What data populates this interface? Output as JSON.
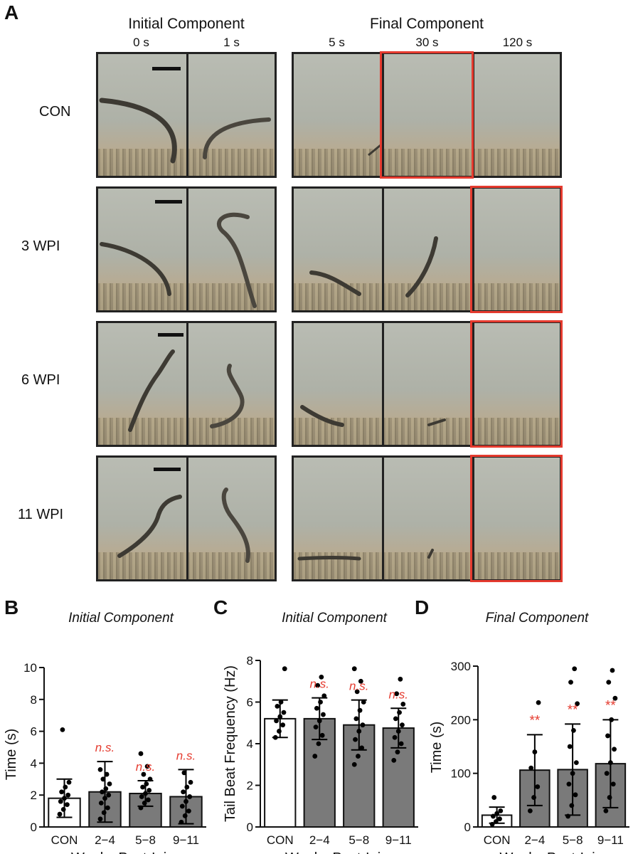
{
  "panel_a": {
    "letter": "A",
    "initial_header": "Initial Component",
    "final_header": "Final Component",
    "times_initial": [
      "0 s",
      "1 s"
    ],
    "times_final": [
      "5 s",
      "30 s",
      "120 s"
    ],
    "rows": [
      "CON",
      "3 WPI",
      "6 WPI",
      "11 WPI"
    ],
    "highlight_color": "#e53b2f"
  },
  "panel_b": {
    "letter": "B",
    "subtitle": "Initial Component",
    "ylabel": "Time (s)",
    "xlabel": "Weeks Post-Injury",
    "ticks": [
      "0",
      "2",
      "4",
      "6",
      "8",
      "10"
    ],
    "categories": [
      "CON",
      "2−4",
      "5−8",
      "9−11"
    ],
    "sig": [
      "",
      "n.s.",
      "n.s.",
      "n.s."
    ]
  },
  "panel_c": {
    "letter": "C",
    "subtitle": "Initial Component",
    "ylabel": "Tail Beat Frequency (Hz)",
    "xlabel": "Weeks Post-Injury",
    "ticks": [
      "0",
      "2",
      "4",
      "6",
      "8"
    ],
    "categories": [
      "CON",
      "2−4",
      "5−8",
      "9−11"
    ],
    "sig": [
      "",
      "n.s.",
      "n.s.",
      "n.s."
    ]
  },
  "panel_d": {
    "letter": "D",
    "subtitle": "Final Component",
    "ylabel": "Time (s)",
    "xlabel": "Weeks Post-Injury",
    "ticks": [
      "0",
      "100",
      "200",
      "300"
    ],
    "categories": [
      "CON",
      "2−4",
      "5−8",
      "9−11"
    ],
    "sig": [
      "",
      "**",
      "**",
      "**"
    ]
  },
  "chart_data": [
    {
      "type": "bar",
      "title": "Initial Component",
      "ylabel": "Time (s)",
      "xlabel": "Weeks Post-Injury",
      "categories": [
        "CON",
        "2−4",
        "5−8",
        "9−11"
      ],
      "values": [
        1.8,
        2.2,
        2.1,
        1.9
      ],
      "sd": [
        1.2,
        1.9,
        0.8,
        1.7
      ],
      "ylim": [
        0,
        10
      ],
      "fills": [
        "#ffffff",
        "#7a7a7a",
        "#7a7a7a",
        "#7a7a7a"
      ],
      "points": [
        [
          0.8,
          1.1,
          1.4,
          1.6,
          1.8,
          2.0,
          2.2,
          2.5,
          2.8,
          6.1
        ],
        [
          0.5,
          0.9,
          1.2,
          1.5,
          1.8,
          2.0,
          2.2,
          2.4,
          2.7,
          3.0,
          3.3,
          3.6
        ],
        [
          1.2,
          1.5,
          1.7,
          1.9,
          2.1,
          2.3,
          2.5,
          2.7,
          3.0,
          3.3,
          3.8,
          4.6
        ],
        [
          0.3,
          0.7,
          1.0,
          1.3,
          1.6,
          1.9,
          2.2,
          2.5,
          2.8,
          3.4
        ]
      ]
    },
    {
      "type": "bar",
      "title": "Initial Component",
      "ylabel": "Tail Beat Frequency (Hz)",
      "xlabel": "Weeks Post-Injury",
      "categories": [
        "CON",
        "2−4",
        "5−8",
        "9−11"
      ],
      "values": [
        5.2,
        5.2,
        4.9,
        4.75
      ],
      "sd": [
        0.9,
        1.0,
        1.2,
        0.95
      ],
      "ylim": [
        0,
        8
      ],
      "fills": [
        "#ffffff",
        "#7a7a7a",
        "#7a7a7a",
        "#7a7a7a"
      ],
      "points": [
        [
          4.3,
          4.6,
          4.9,
          5.1,
          5.3,
          5.5,
          5.8,
          6.0,
          7.6
        ],
        [
          3.4,
          4.0,
          4.4,
          4.8,
          5.1,
          5.4,
          5.7,
          6.0,
          6.3,
          6.8,
          7.2
        ],
        [
          3.0,
          3.4,
          3.8,
          4.2,
          4.6,
          4.9,
          5.2,
          5.6,
          6.0,
          6.5,
          7.0,
          7.6
        ],
        [
          3.2,
          3.6,
          4.0,
          4.3,
          4.6,
          4.9,
          5.2,
          5.5,
          5.9,
          6.4,
          7.1
        ]
      ]
    },
    {
      "type": "bar",
      "title": "Final Component",
      "ylabel": "Time (s)",
      "xlabel": "Weeks Post-Injury",
      "categories": [
        "CON",
        "2−4",
        "5−8",
        "9−11"
      ],
      "values": [
        22,
        106,
        107,
        118
      ],
      "sd": [
        15,
        66,
        85,
        82
      ],
      "ylim": [
        0,
        300
      ],
      "fills": [
        "#ffffff",
        "#7a7a7a",
        "#7a7a7a",
        "#7a7a7a"
      ],
      "points": [
        [
          5,
          10,
          15,
          20,
          25,
          30,
          55
        ],
        [
          30,
          55,
          75,
          110,
          140,
          232
        ],
        [
          20,
          40,
          60,
          80,
          100,
          120,
          150,
          180,
          230,
          270,
          295
        ],
        [
          30,
          55,
          80,
          100,
          120,
          145,
          170,
          200,
          240,
          270,
          292
        ]
      ]
    }
  ]
}
